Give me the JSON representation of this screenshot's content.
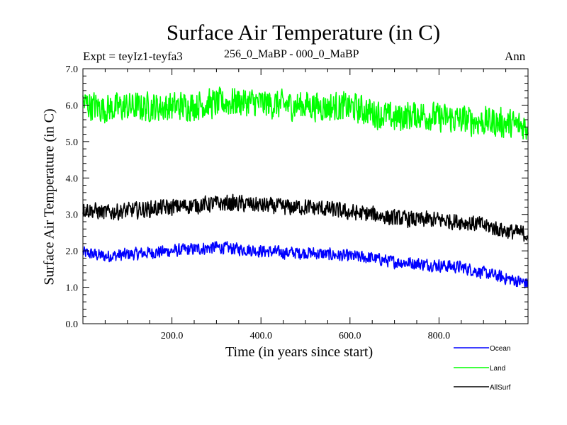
{
  "chart_data": {
    "type": "line",
    "title": "Surface Air Temperature (in C)",
    "experiment_label": "Expt = teyIz1-teyfa3",
    "subtitle": "256_0_MaBP - 000_0_MaBP",
    "period_label": "Ann",
    "xlabel": "Time (in years since start)",
    "ylabel": "Surface Air Temperature (in C)",
    "xlim": [
      0,
      1000
    ],
    "ylim": [
      0,
      7
    ],
    "xticks": [
      200,
      400,
      600,
      800
    ],
    "xtick_labels": [
      "200.0",
      "400.0",
      "600.0",
      "800.0"
    ],
    "yticks": [
      0,
      1,
      2,
      3,
      4,
      5,
      6,
      7
    ],
    "ytick_labels": [
      "0.0",
      "1.0",
      "2.0",
      "3.0",
      "4.0",
      "5.0",
      "6.0",
      "7.0"
    ],
    "legend_position": "bottom-right, outside plot",
    "x": [
      0,
      50,
      100,
      150,
      200,
      250,
      300,
      350,
      400,
      450,
      500,
      550,
      600,
      650,
      700,
      750,
      800,
      850,
      900,
      950,
      1000
    ],
    "series": [
      {
        "name": "Ocean",
        "color": "#0000ff",
        "values": [
          1.95,
          1.85,
          1.9,
          1.95,
          2.0,
          2.05,
          2.1,
          2.05,
          2.0,
          1.95,
          1.95,
          1.9,
          1.85,
          1.8,
          1.7,
          1.65,
          1.6,
          1.55,
          1.4,
          1.25,
          1.1
        ]
      },
      {
        "name": "Land",
        "color": "#00ff00",
        "values": [
          6.05,
          5.9,
          5.95,
          5.95,
          5.95,
          6.0,
          6.05,
          6.1,
          6.05,
          6.0,
          6.0,
          5.95,
          5.95,
          5.8,
          5.65,
          5.75,
          5.65,
          5.6,
          5.55,
          5.5,
          5.4
        ]
      },
      {
        "name": "AllSurf",
        "color": "#000000",
        "values": [
          3.15,
          3.05,
          3.1,
          3.15,
          3.2,
          3.25,
          3.3,
          3.3,
          3.25,
          3.2,
          3.2,
          3.15,
          3.05,
          3.0,
          2.9,
          2.85,
          2.85,
          2.8,
          2.7,
          2.55,
          2.45
        ]
      }
    ]
  }
}
